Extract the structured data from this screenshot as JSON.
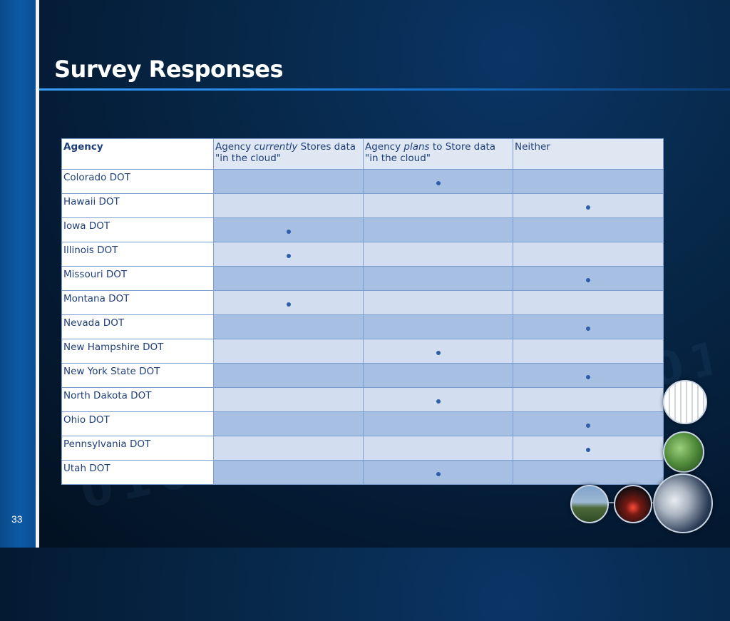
{
  "slide": {
    "title": "Survey Responses",
    "page_number": "33"
  },
  "table": {
    "headers": [
      {
        "segments": [
          "Agency"
        ]
      },
      {
        "segments": [
          "Agency ",
          "currently",
          " Stores data \"in the cloud\""
        ]
      },
      {
        "segments": [
          "Agency ",
          "plans",
          " to Store data \"in the cloud\""
        ]
      },
      {
        "segments": [
          "Neither"
        ]
      }
    ],
    "rows": [
      {
        "agency": "Colorado DOT",
        "marks": [
          false,
          true,
          false
        ]
      },
      {
        "agency": "Hawaii DOT",
        "marks": [
          false,
          false,
          true
        ]
      },
      {
        "agency": "Iowa DOT",
        "marks": [
          true,
          false,
          false
        ]
      },
      {
        "agency": "Illinois DOT",
        "marks": [
          true,
          false,
          false
        ]
      },
      {
        "agency": "Missouri DOT",
        "marks": [
          false,
          false,
          true
        ]
      },
      {
        "agency": "Montana DOT",
        "marks": [
          true,
          false,
          false
        ]
      },
      {
        "agency": "Nevada DOT",
        "marks": [
          false,
          false,
          true
        ]
      },
      {
        "agency": "New Hampshire DOT",
        "marks": [
          false,
          true,
          false
        ]
      },
      {
        "agency": "New York State DOT",
        "marks": [
          false,
          false,
          true
        ]
      },
      {
        "agency": "North Dakota DOT",
        "marks": [
          false,
          true,
          false
        ]
      },
      {
        "agency": "Ohio DOT",
        "marks": [
          false,
          false,
          true
        ]
      },
      {
        "agency": "Pennsylvania DOT",
        "marks": [
          false,
          false,
          true
        ]
      },
      {
        "agency": "Utah DOT",
        "marks": [
          false,
          true,
          false
        ]
      }
    ]
  },
  "colors": {
    "header_fill": "#dfe7f3",
    "row_dark": "#a6bfe2",
    "row_light": "#d2def0",
    "text": "#1f3f7a",
    "accent_rule": "#1d7fe0"
  },
  "icons": {
    "mark": "filled-dot-icon",
    "decor": [
      "traffic-diagram-photo",
      "highway-cars-photo",
      "traffic-camera-photo",
      "tail-lights-photo",
      "highway-sign-photo"
    ]
  }
}
